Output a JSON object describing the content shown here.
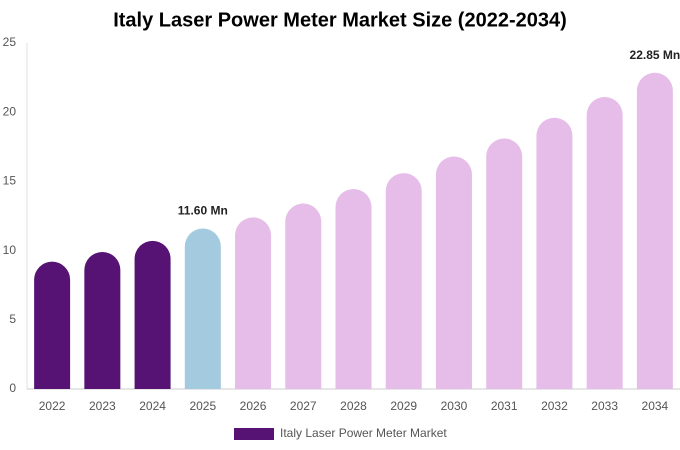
{
  "chart_data": {
    "type": "bar",
    "title": "Italy Laser Power Meter Market Size (2022-2034)",
    "categories": [
      "2022",
      "2023",
      "2024",
      "2025",
      "2026",
      "2027",
      "2028",
      "2029",
      "2030",
      "2031",
      "2032",
      "2033",
      "2034"
    ],
    "series": [
      {
        "name": "Italy Laser Power Meter Market",
        "color": "#561374",
        "colors": [
          "#561374",
          "#561374",
          "#561374",
          "#a3cadf",
          "#e6bde9",
          "#e6bde9",
          "#e6bde9",
          "#e6bde9",
          "#e6bde9",
          "#e6bde9",
          "#e6bde9",
          "#e6bde9",
          "#e6bde9"
        ],
        "values": [
          9.2,
          9.9,
          10.7,
          11.6,
          12.4,
          13.4,
          14.45,
          15.6,
          16.8,
          18.1,
          19.6,
          21.1,
          22.85
        ],
        "value_labels": [
          null,
          null,
          null,
          "11.60 Mn",
          null,
          null,
          null,
          null,
          null,
          null,
          null,
          null,
          "22.85 Mn"
        ]
      }
    ],
    "ylim": [
      0,
      25
    ],
    "yticks": [
      0,
      5,
      10,
      15,
      20,
      25
    ],
    "grid": false,
    "legend": "bottom"
  }
}
